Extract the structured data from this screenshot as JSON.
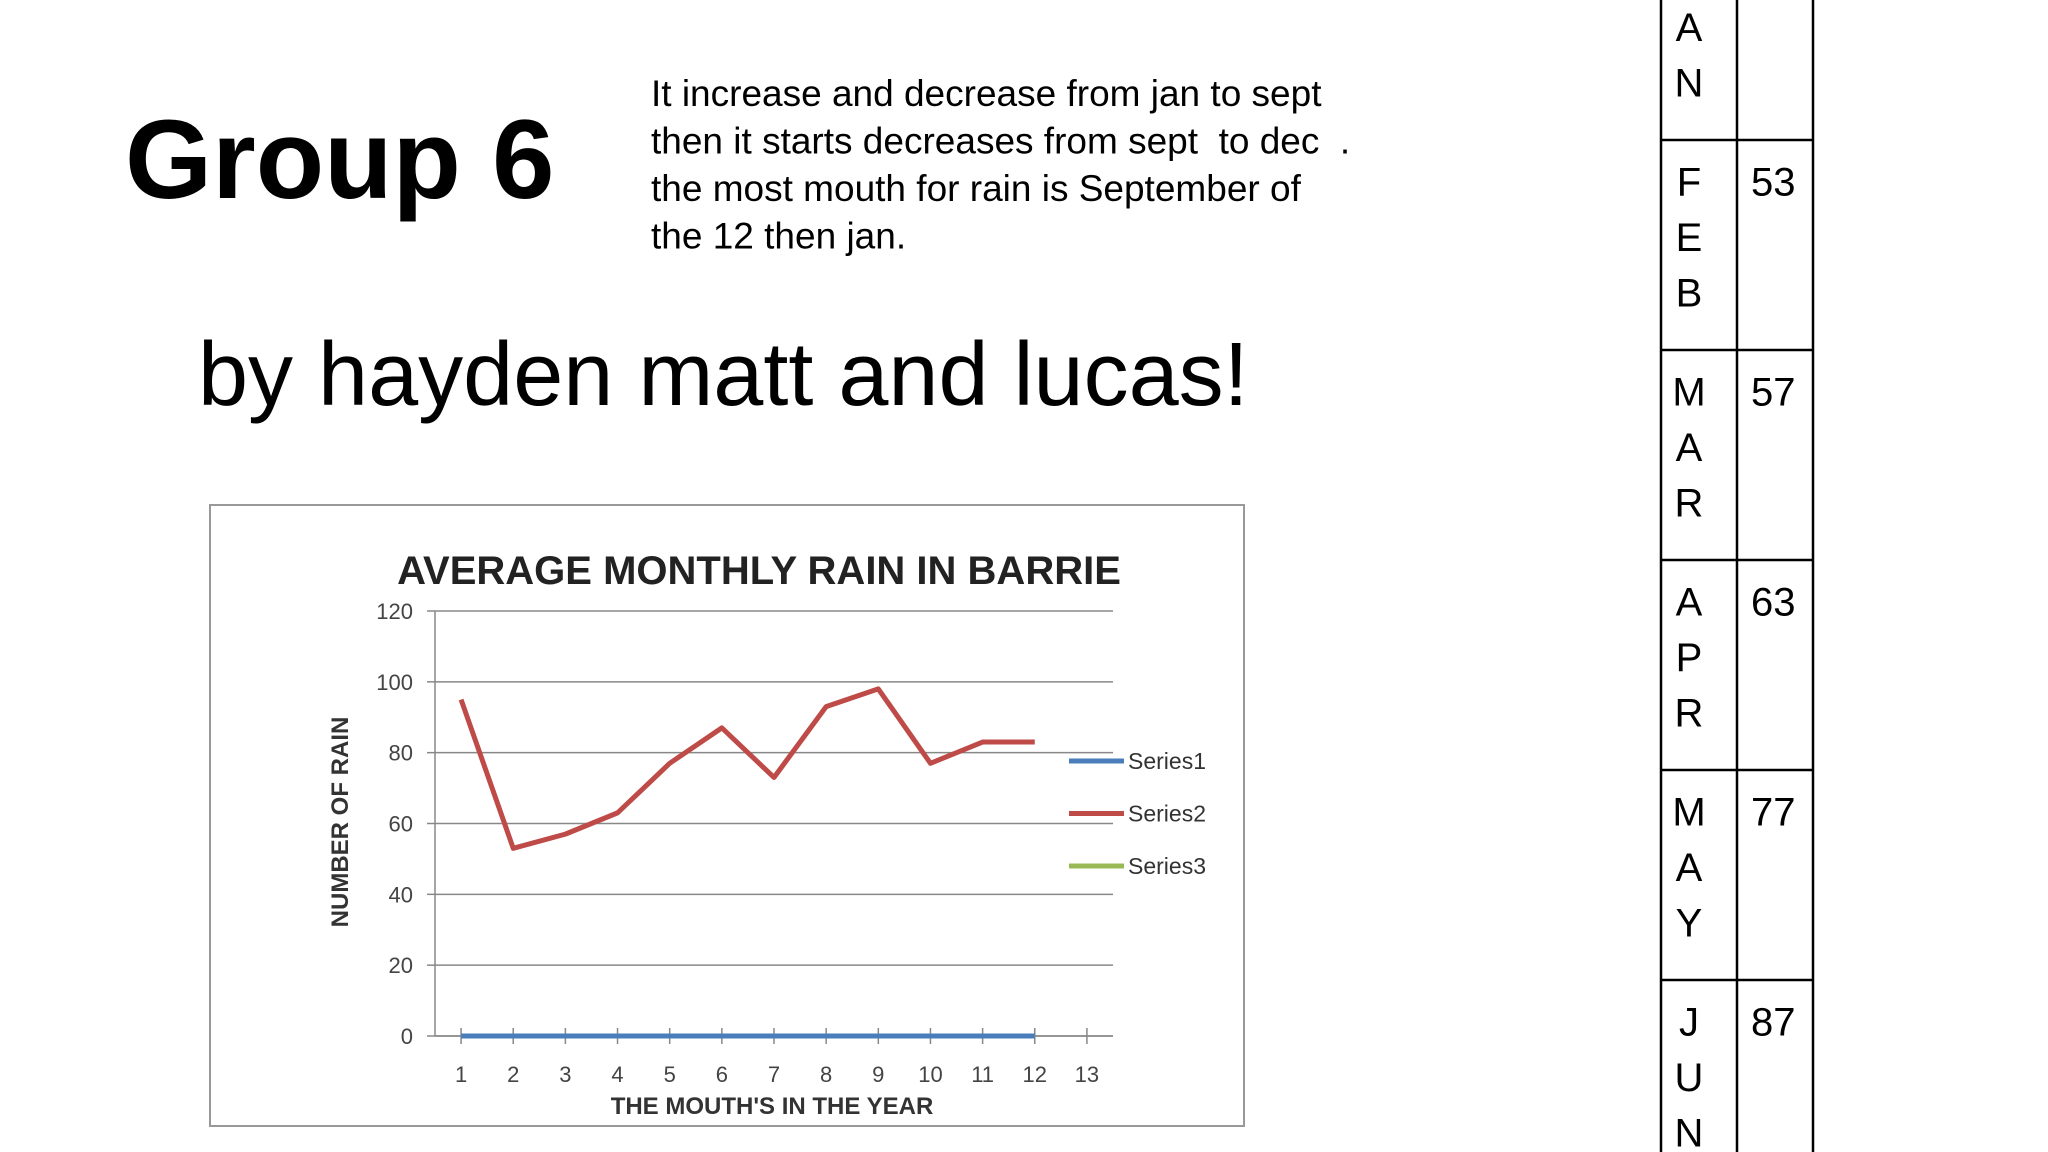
{
  "title": "Group 6",
  "subtitle": "by hayden matt and lucas!",
  "description": [
    "It increase and decrease from jan to sept",
    "then it starts decreases from sept  to dec  .",
    "the most mouth for rain is September of",
    "the 12 then jan."
  ],
  "chart_data": {
    "type": "line",
    "title": "AVERAGE MONTHLY RAIN IN BARRIE",
    "x_label": "THE MOUTH'S IN THE YEAR",
    "y_label": "NUMBER OF RAIN",
    "x": [
      1,
      2,
      3,
      4,
      5,
      6,
      7,
      8,
      9,
      10,
      11,
      12
    ],
    "series": [
      {
        "name": "Series1",
        "color": "#4a7ebb",
        "values": [
          0,
          0,
          0,
          0,
          0,
          0,
          0,
          0,
          0,
          0,
          0,
          0
        ]
      },
      {
        "name": "Series2",
        "color": "#be4b48",
        "values": [
          95,
          53,
          57,
          63,
          77,
          87,
          73,
          93,
          98,
          77,
          83,
          83
        ]
      },
      {
        "name": "Series3",
        "color": "#98b954",
        "values": [
          null,
          null,
          null,
          null,
          null,
          null,
          null,
          null,
          null,
          null,
          null,
          null
        ]
      }
    ],
    "xlim": [
      0.5,
      13.5
    ],
    "xticks": [
      1,
      2,
      3,
      4,
      5,
      6,
      7,
      8,
      9,
      10,
      11,
      12,
      13
    ],
    "ylim": [
      0,
      120
    ],
    "yticks": [
      0,
      20,
      40,
      60,
      80,
      100,
      120
    ],
    "grid": true,
    "legend": "right"
  },
  "table": {
    "rows": [
      {
        "letters": [
          "A",
          "N"
        ]
      },
      {
        "letters": [
          "F",
          "E",
          "B"
        ],
        "value": 53
      },
      {
        "letters": [
          "M",
          "A",
          "R"
        ],
        "value": 57
      },
      {
        "letters": [
          "A",
          "P",
          "R"
        ],
        "value": 63
      },
      {
        "letters": [
          "M",
          "A",
          "Y"
        ],
        "value": 77
      },
      {
        "letters": [
          "J",
          "U",
          "N"
        ],
        "value": 87
      }
    ]
  }
}
